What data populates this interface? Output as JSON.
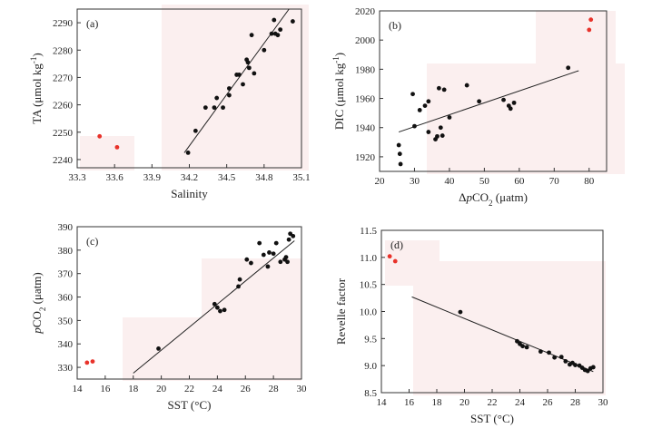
{
  "colors": {
    "black_point": "#111111",
    "red_point": "#e8322a",
    "shade": "#fbefef"
  },
  "chart_data": [
    {
      "type": "scatter",
      "panel_label": "(a)",
      "xlabel": "Salinity",
      "ylabel": "TA  (μmol kg⁻¹)",
      "ylabel_parts": [
        "TA  (",
        "μ",
        "mol kg",
        "-1",
        ")"
      ],
      "xlim": [
        33.3,
        35.1
      ],
      "ylim": [
        2237,
        2295
      ],
      "xticks": [
        33.3,
        33.6,
        33.9,
        34.2,
        34.5,
        34.8,
        35.1
      ],
      "xtick_labels": [
        "33.3",
        "33.6",
        "33.9",
        "34.2",
        "34.5",
        "34.8",
        "35.1"
      ],
      "yticks": [
        2240,
        2250,
        2260,
        2270,
        2280,
        2290
      ],
      "ytick_labels": [
        "2240",
        "2250",
        "2260",
        "2270",
        "2280",
        "2290"
      ],
      "series": [
        {
          "name": "black",
          "color": "#111111",
          "points": [
            [
              34.19,
              2242.5
            ],
            [
              34.25,
              2250.5
            ],
            [
              34.33,
              2259
            ],
            [
              34.4,
              2259
            ],
            [
              34.42,
              2262.5
            ],
            [
              34.47,
              2259
            ],
            [
              34.52,
              2266
            ],
            [
              34.52,
              2263.5
            ],
            [
              34.58,
              2271
            ],
            [
              34.6,
              2271
            ],
            [
              34.63,
              2267.5
            ],
            [
              34.66,
              2276.5
            ],
            [
              34.67,
              2275.5
            ],
            [
              34.68,
              2273.5
            ],
            [
              34.7,
              2285.5
            ],
            [
              34.72,
              2271.5
            ],
            [
              34.8,
              2280
            ],
            [
              34.86,
              2286
            ],
            [
              34.88,
              2291
            ],
            [
              34.89,
              2286
            ],
            [
              34.91,
              2285.5
            ],
            [
              34.93,
              2287.5
            ],
            [
              35.03,
              2290.5
            ]
          ]
        },
        {
          "name": "red",
          "color": "#e8322a",
          "points": [
            [
              33.48,
              2248.5
            ],
            [
              33.62,
              2244.5
            ]
          ]
        }
      ],
      "fit": {
        "x0": 34.16,
        "y0": 2242.5,
        "x1": 35.0,
        "y1": 2295
      }
    },
    {
      "type": "scatter",
      "panel_label": "(b)",
      "xlabel": "ΔpCO₂ (μatm)",
      "xlabel_parts": [
        "Δ",
        "p",
        "CO",
        "2",
        " (μatm)"
      ],
      "ylabel": "DIC (μmol kg⁻¹)",
      "ylabel_parts": [
        "DIC (",
        "μ",
        "mol kg",
        "-1",
        ")"
      ],
      "xlim": [
        20,
        85
      ],
      "ylim": [
        1910,
        2020
      ],
      "xticks": [
        20,
        30,
        40,
        50,
        60,
        70,
        80
      ],
      "xtick_labels": [
        "20",
        "30",
        "40",
        "50",
        "60",
        "70",
        "80"
      ],
      "yticks": [
        1920,
        1940,
        1960,
        1980,
        2000,
        2020
      ],
      "ytick_labels": [
        "1920",
        "1940",
        "1960",
        "1980",
        "2000",
        "2020"
      ],
      "series": [
        {
          "name": "black",
          "color": "#111111",
          "points": [
            [
              25.5,
              1928
            ],
            [
              25.8,
              1922
            ],
            [
              26,
              1915
            ],
            [
              29.5,
              1963
            ],
            [
              30,
              1941
            ],
            [
              31.5,
              1952
            ],
            [
              33,
              1955
            ],
            [
              34,
              1958
            ],
            [
              34,
              1937
            ],
            [
              36,
              1932
            ],
            [
              36.5,
              1934
            ],
            [
              37,
              1967
            ],
            [
              37.5,
              1940
            ],
            [
              38,
              1934.5
            ],
            [
              38.5,
              1966
            ],
            [
              40,
              1947
            ],
            [
              45,
              1969
            ],
            [
              48.5,
              1958
            ],
            [
              55.5,
              1959
            ],
            [
              57,
              1955
            ],
            [
              57.5,
              1953
            ],
            [
              58.5,
              1957
            ],
            [
              74,
              1981
            ]
          ]
        },
        {
          "name": "red",
          "color": "#e8322a",
          "points": [
            [
              80.5,
              2014
            ],
            [
              80,
              2007
            ]
          ]
        }
      ],
      "fit": {
        "x0": 25.5,
        "y0": 1937,
        "x1": 77,
        "y1": 1979
      }
    },
    {
      "type": "scatter",
      "panel_label": "(c)",
      "xlabel": "SST (°C)",
      "ylabel": "pCO₂ (μatm)",
      "ylabel_parts": [
        "",
        "p",
        "CO",
        "2",
        " (μatm)"
      ],
      "xlim": [
        14,
        30
      ],
      "ylim": [
        325,
        390
      ],
      "xticks": [
        14,
        16,
        18,
        20,
        22,
        24,
        26,
        28,
        30
      ],
      "xtick_labels": [
        "14",
        "16",
        "18",
        "20",
        "22",
        "24",
        "26",
        "28",
        "30"
      ],
      "yticks": [
        330,
        340,
        350,
        360,
        370,
        380,
        390
      ],
      "ytick_labels": [
        "330",
        "340",
        "350",
        "360",
        "370",
        "380",
        "390"
      ],
      "series": [
        {
          "name": "black",
          "color": "#111111",
          "points": [
            [
              19.8,
              338
            ],
            [
              23.8,
              357
            ],
            [
              24,
              355.5
            ],
            [
              24.2,
              354
            ],
            [
              24.5,
              354.5
            ],
            [
              25.5,
              364.5
            ],
            [
              25.6,
              367.5
            ],
            [
              26.1,
              376
            ],
            [
              26.4,
              374.5
            ],
            [
              27,
              383
            ],
            [
              27.3,
              378
            ],
            [
              27.6,
              373
            ],
            [
              27.7,
              379
            ],
            [
              28,
              378.5
            ],
            [
              28.2,
              383
            ],
            [
              28.5,
              375
            ],
            [
              28.8,
              376
            ],
            [
              29,
              375
            ],
            [
              29.2,
              387
            ],
            [
              29.4,
              386
            ],
            [
              28.9,
              377
            ],
            [
              29.1,
              384.5
            ]
          ]
        },
        {
          "name": "red",
          "color": "#e8322a",
          "points": [
            [
              14.7,
              332
            ],
            [
              15.1,
              332.5
            ]
          ]
        }
      ],
      "fit": {
        "x0": 18,
        "y0": 327.5,
        "x1": 29.5,
        "y1": 384
      }
    },
    {
      "type": "scatter",
      "panel_label": "(d)",
      "xlabel": "SST (°C)",
      "ylabel": "Revelle factor",
      "xlim": [
        14,
        30
      ],
      "ylim": [
        8.5,
        11.5
      ],
      "xticks": [
        14,
        16,
        18,
        20,
        22,
        24,
        26,
        28,
        30
      ],
      "xtick_labels": [
        "14",
        "16",
        "18",
        "20",
        "22",
        "24",
        "26",
        "28",
        "30"
      ],
      "yticks": [
        8.5,
        9.0,
        9.5,
        10.0,
        10.5,
        11.0,
        11.5
      ],
      "ytick_labels": [
        "8.5",
        "9.0",
        "9.5",
        "10.0",
        "10.5",
        "11.0",
        "11.5"
      ],
      "series": [
        {
          "name": "black",
          "color": "#111111",
          "points": [
            [
              19.7,
              9.99
            ],
            [
              23.8,
              9.45
            ],
            [
              24,
              9.4
            ],
            [
              24.2,
              9.36
            ],
            [
              24.5,
              9.34
            ],
            [
              25.5,
              9.26
            ],
            [
              26.1,
              9.24
            ],
            [
              26.5,
              9.15
            ],
            [
              27,
              9.16
            ],
            [
              27.3,
              9.08
            ],
            [
              27.6,
              9.02
            ],
            [
              27.8,
              9.05
            ],
            [
              28,
              9.01
            ],
            [
              28.3,
              9.0
            ],
            [
              28.5,
              8.96
            ],
            [
              28.7,
              8.92
            ],
            [
              28.9,
              8.9
            ],
            [
              29.1,
              8.95
            ],
            [
              29.3,
              8.97
            ]
          ]
        },
        {
          "name": "red",
          "color": "#e8322a",
          "points": [
            [
              14.6,
              11.02
            ],
            [
              15.0,
              10.93
            ]
          ]
        }
      ],
      "fit": {
        "x0": 16.2,
        "y0": 10.27,
        "x1": 29.3,
        "y1": 8.89
      }
    }
  ]
}
